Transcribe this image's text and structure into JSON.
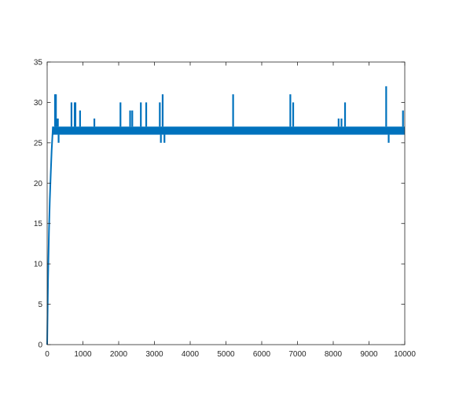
{
  "chart_data": {
    "type": "line",
    "title": "",
    "xlabel": "",
    "ylabel": "",
    "xlim": [
      0,
      10000
    ],
    "ylim": [
      0,
      35
    ],
    "grid": false,
    "x_ticks": [
      0,
      1000,
      2000,
      3000,
      4000,
      5000,
      6000,
      7000,
      8000,
      9000,
      10000
    ],
    "y_ticks": [
      0,
      5,
      10,
      15,
      20,
      25,
      30,
      35
    ],
    "x_tick_labels": [
      "0",
      "1000",
      "2000",
      "3000",
      "4000",
      "5000",
      "6000",
      "7000",
      "8000",
      "9000",
      "10000"
    ],
    "y_tick_labels": [
      "0",
      "5",
      "10",
      "15",
      "20",
      "25",
      "30",
      "35"
    ],
    "series": [
      {
        "color": "#0072BD",
        "band": {
          "from_x": 150,
          "to_x": 10000,
          "low": 26,
          "high": 27
        },
        "ramp": [
          [
            0,
            0
          ],
          [
            25,
            8
          ],
          [
            50,
            14
          ],
          [
            75,
            18
          ],
          [
            100,
            21
          ],
          [
            125,
            24
          ],
          [
            150,
            26
          ],
          [
            160,
            27
          ]
        ],
        "spikes": [
          {
            "x": 180,
            "y": 27
          },
          {
            "x": 220,
            "y": 31
          },
          {
            "x": 245,
            "y": 31
          },
          {
            "x": 270,
            "y": 28
          },
          {
            "x": 300,
            "y": 28
          },
          {
            "x": 320,
            "y": 25
          },
          {
            "x": 680,
            "y": 30
          },
          {
            "x": 770,
            "y": 30
          },
          {
            "x": 790,
            "y": 30
          },
          {
            "x": 920,
            "y": 29
          },
          {
            "x": 1320,
            "y": 28
          },
          {
            "x": 2050,
            "y": 30
          },
          {
            "x": 2320,
            "y": 29
          },
          {
            "x": 2380,
            "y": 29
          },
          {
            "x": 2620,
            "y": 30
          },
          {
            "x": 2770,
            "y": 30
          },
          {
            "x": 3150,
            "y": 30
          },
          {
            "x": 3180,
            "y": 25
          },
          {
            "x": 3230,
            "y": 31
          },
          {
            "x": 3280,
            "y": 25
          },
          {
            "x": 5200,
            "y": 31
          },
          {
            "x": 6800,
            "y": 31
          },
          {
            "x": 6880,
            "y": 30
          },
          {
            "x": 8150,
            "y": 28
          },
          {
            "x": 8230,
            "y": 28
          },
          {
            "x": 8330,
            "y": 30
          },
          {
            "x": 9480,
            "y": 32
          },
          {
            "x": 9550,
            "y": 25
          },
          {
            "x": 9950,
            "y": 29
          }
        ]
      }
    ]
  }
}
